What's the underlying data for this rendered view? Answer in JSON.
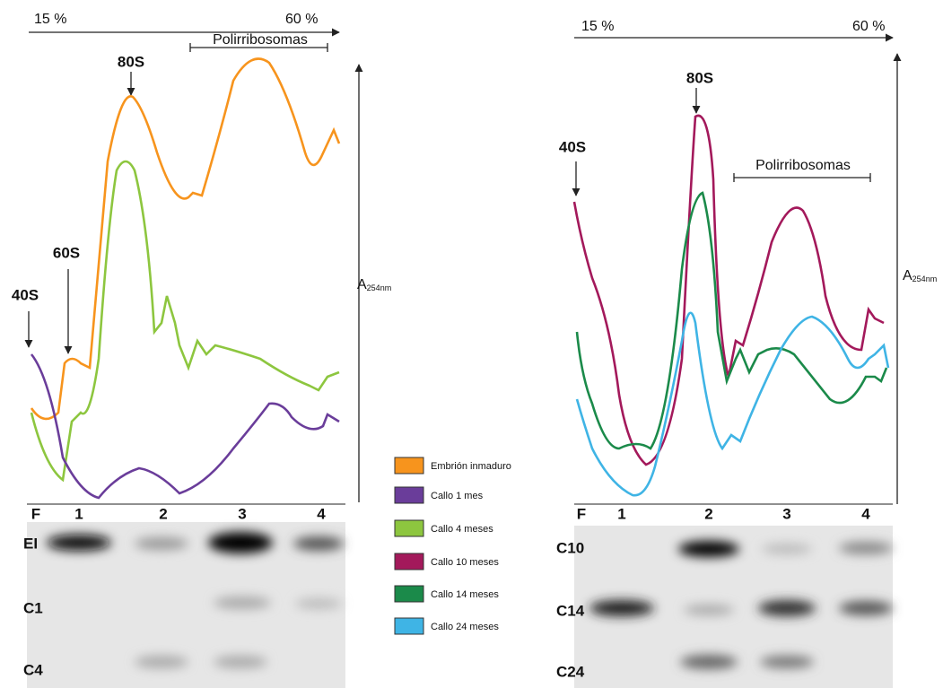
{
  "left_panel": {
    "gradient": {
      "start": "15 %",
      "end": "60 %"
    },
    "peaks": {
      "s40": "40S",
      "s60": "60S",
      "s80": "80S"
    },
    "polysomes": "Polirribosomas",
    "y_axis": {
      "label": "A",
      "subscript": "254nm"
    },
    "fractions": [
      "F",
      "1",
      "2",
      "3",
      "4"
    ],
    "blot_rows": [
      "EI",
      "C1",
      "C4"
    ]
  },
  "right_panel": {
    "gradient": {
      "start": "15 %",
      "end": "60 %"
    },
    "peaks": {
      "s40": "40S",
      "s80": "80S"
    },
    "polysomes": "Polirribosomas",
    "y_axis": {
      "label": "A",
      "subscript": "254nm"
    },
    "fractions": [
      "F",
      "1",
      "2",
      "3",
      "4"
    ],
    "blot_rows": [
      "C10",
      "C14",
      "C24"
    ]
  },
  "legend": [
    {
      "label": "Embrión inmaduro",
      "color": "#f7941d"
    },
    {
      "label": "Callo 1 mes",
      "color": "#6a3d9a"
    },
    {
      "label": "Callo 4 meses",
      "color": "#8dc63f"
    },
    {
      "label": "Callo 10 meses",
      "color": "#a3195b"
    },
    {
      "label": "Callo 14 meses",
      "color": "#1b8a4a"
    },
    {
      "label": "Callo 24 meses",
      "color": "#3fb4e5"
    }
  ]
}
